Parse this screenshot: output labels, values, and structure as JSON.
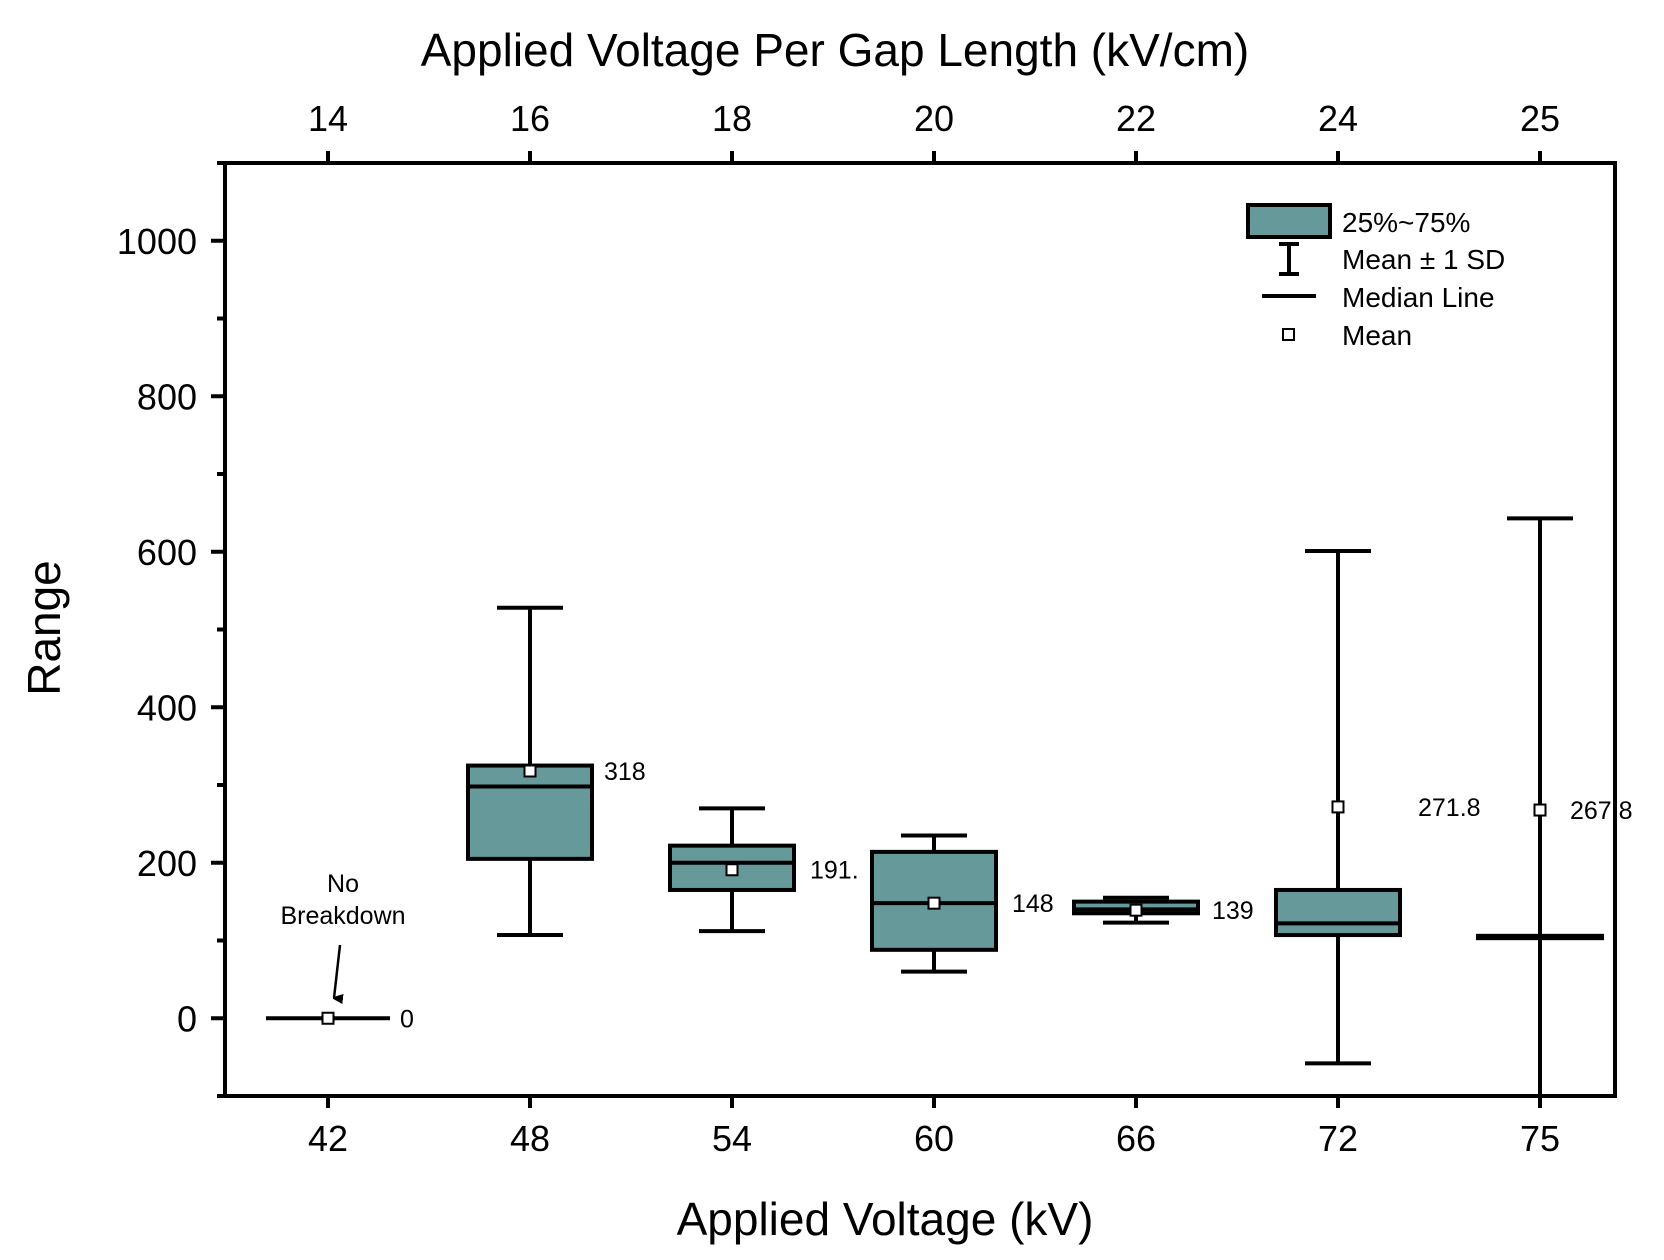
{
  "chart_data": {
    "type": "box",
    "title": "",
    "xlabel": "Applied Voltage (kV)",
    "x2label": "Applied Voltage Per Gap Length (kV/cm)",
    "ylabel": "Range",
    "ylim": [
      -100,
      1100
    ],
    "yticks": [
      0,
      200,
      400,
      600,
      800,
      1000
    ],
    "categories": [
      "42",
      "48",
      "54",
      "60",
      "66",
      "72",
      "75"
    ],
    "top_categories": [
      "14",
      "16",
      "18",
      "20",
      "22",
      "24",
      "25"
    ],
    "box_color": "#669999",
    "boxes": [
      {
        "q1": 0,
        "q3": 0,
        "median": 0,
        "mean": 0,
        "whisker_low": 0,
        "whisker_high": 0,
        "label": "0"
      },
      {
        "q1": 205,
        "q3": 325,
        "median": 298,
        "mean": 318,
        "whisker_low": 107,
        "whisker_high": 528,
        "label": "318"
      },
      {
        "q1": 165,
        "q3": 222,
        "median": 200,
        "mean": 191,
        "whisker_low": 112,
        "whisker_high": 270,
        "label": "191."
      },
      {
        "q1": 88,
        "q3": 214,
        "median": 148,
        "mean": 148,
        "whisker_low": 60,
        "whisker_high": 235,
        "label": "148"
      },
      {
        "q1": 135,
        "q3": 150,
        "median": 140,
        "mean": 139,
        "whisker_low": 123,
        "whisker_high": 155,
        "label": "139"
      },
      {
        "q1": 107,
        "q3": 165,
        "median": 122,
        "mean": 271.8,
        "whisker_low": -58,
        "whisker_high": 601,
        "label": "271.8"
      },
      {
        "q1": 103,
        "q3": 106,
        "median": 104,
        "mean": 267.8,
        "whisker_low": -100,
        "whisker_high": 643,
        "label": "267.8"
      }
    ],
    "annotation": {
      "lines": [
        "No",
        "Breakdown"
      ],
      "category": "42"
    },
    "legend": {
      "position": "top-right",
      "items": [
        "25%~75%",
        "Mean ± 1 SD",
        "Median Line",
        "Mean"
      ]
    }
  }
}
